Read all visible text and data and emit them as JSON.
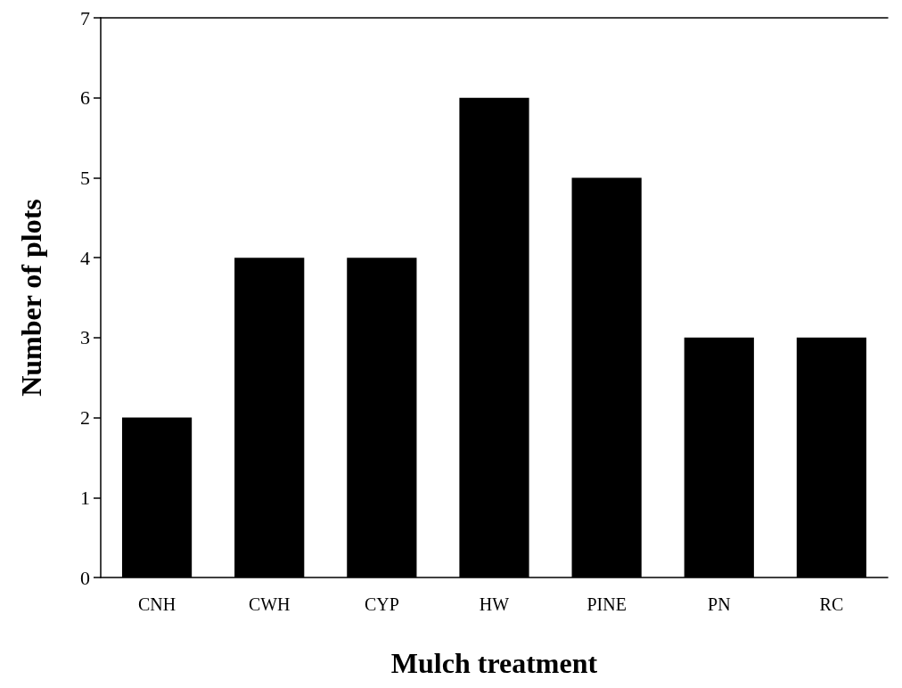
{
  "chart_data": {
    "type": "bar",
    "xlabel": "Mulch treatment",
    "ylabel": "Number of plots",
    "categories": [
      "CNH",
      "CWH",
      "CYP",
      "HW",
      "PINE",
      "PN",
      "RC"
    ],
    "values": [
      2,
      4,
      4,
      6,
      5,
      3,
      3
    ],
    "color": "#000000",
    "ylim": [
      0,
      7
    ],
    "yticks": [
      0,
      1,
      2,
      3,
      4,
      5,
      6,
      7
    ],
    "grid": false
  }
}
